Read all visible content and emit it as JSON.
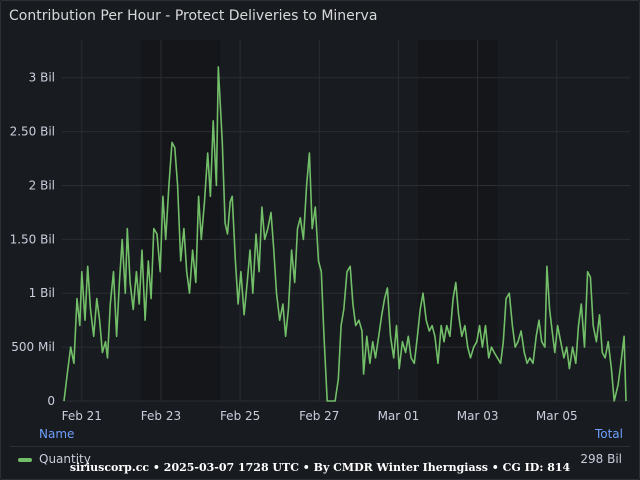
{
  "panel": {
    "title": "Contribution Per Hour - Protect Deliveries to Minerva"
  },
  "legend": {
    "name_header": "Name",
    "total_header": "Total",
    "series_name": "Quantity",
    "series_total": "298 Bil"
  },
  "footer": {
    "text": "siriuscorp.cc • 2025-03-07 1728 UTC • By CMDR Winter Iherngiass • CG ID: 814"
  },
  "colors": {
    "series": "#73bf69",
    "background": "#181b1f",
    "axis_text": "#ccccdc",
    "link": "#6e9fff"
  },
  "chart_data": {
    "type": "line",
    "title": "Contribution Per Hour - Protect Deliveries to Minerva",
    "xlabel": "",
    "ylabel": "",
    "x_tick_labels": [
      "Feb 21",
      "Feb 23",
      "Feb 25",
      "Feb 27",
      "Mar 01",
      "Mar 03",
      "Mar 05"
    ],
    "y_tick_labels": [
      "0",
      "500 Mil",
      "1 Bil",
      "1.50 Bil",
      "2 Bil",
      "2.50 Bil",
      "3 Bil"
    ],
    "y_ticks": [
      0,
      0.5,
      1.0,
      1.5,
      2.0,
      2.5,
      3.0
    ],
    "y_unit": "Bil",
    "ylim": [
      0,
      3.35
    ],
    "xlim_days_from_feb21": [
      -0.5,
      13.85
    ],
    "grid": true,
    "legend_position": "bottom",
    "series": [
      {
        "name": "Quantity",
        "color": "#73bf69",
        "points": [
          [
            -0.45,
            0.0
          ],
          [
            -0.35,
            0.3
          ],
          [
            -0.28,
            0.5
          ],
          [
            -0.2,
            0.35
          ],
          [
            -0.12,
            0.95
          ],
          [
            -0.05,
            0.7
          ],
          [
            0.0,
            1.2
          ],
          [
            0.08,
            0.75
          ],
          [
            0.15,
            1.25
          ],
          [
            0.22,
            0.85
          ],
          [
            0.3,
            0.6
          ],
          [
            0.38,
            0.95
          ],
          [
            0.45,
            0.75
          ],
          [
            0.52,
            0.45
          ],
          [
            0.6,
            0.55
          ],
          [
            0.65,
            0.4
          ],
          [
            0.72,
            0.9
          ],
          [
            0.8,
            1.2
          ],
          [
            0.88,
            0.6
          ],
          [
            0.95,
            1.1
          ],
          [
            1.02,
            1.5
          ],
          [
            1.1,
            1.0
          ],
          [
            1.15,
            1.6
          ],
          [
            1.22,
            1.1
          ],
          [
            1.3,
            0.85
          ],
          [
            1.38,
            1.2
          ],
          [
            1.45,
            0.9
          ],
          [
            1.52,
            1.4
          ],
          [
            1.6,
            0.75
          ],
          [
            1.68,
            1.3
          ],
          [
            1.75,
            0.95
          ],
          [
            1.82,
            1.6
          ],
          [
            1.9,
            1.55
          ],
          [
            1.98,
            1.2
          ],
          [
            2.05,
            1.9
          ],
          [
            2.12,
            1.5
          ],
          [
            2.2,
            2.0
          ],
          [
            2.28,
            2.4
          ],
          [
            2.35,
            2.35
          ],
          [
            2.42,
            2.0
          ],
          [
            2.5,
            1.3
          ],
          [
            2.58,
            1.6
          ],
          [
            2.65,
            1.2
          ],
          [
            2.72,
            1.0
          ],
          [
            2.8,
            1.4
          ],
          [
            2.88,
            1.1
          ],
          [
            2.95,
            1.9
          ],
          [
            3.02,
            1.5
          ],
          [
            3.1,
            1.85
          ],
          [
            3.18,
            2.3
          ],
          [
            3.25,
            1.9
          ],
          [
            3.32,
            2.6
          ],
          [
            3.4,
            2.0
          ],
          [
            3.45,
            3.1
          ],
          [
            3.5,
            2.75
          ],
          [
            3.55,
            2.4
          ],
          [
            3.62,
            1.65
          ],
          [
            3.68,
            1.55
          ],
          [
            3.75,
            1.85
          ],
          [
            3.8,
            1.9
          ],
          [
            3.88,
            1.3
          ],
          [
            3.95,
            0.9
          ],
          [
            4.02,
            1.2
          ],
          [
            4.1,
            0.8
          ],
          [
            4.18,
            1.1
          ],
          [
            4.25,
            1.4
          ],
          [
            4.32,
            1.0
          ],
          [
            4.4,
            1.55
          ],
          [
            4.48,
            1.2
          ],
          [
            4.55,
            1.8
          ],
          [
            4.62,
            1.5
          ],
          [
            4.7,
            1.6
          ],
          [
            4.78,
            1.75
          ],
          [
            4.85,
            1.4
          ],
          [
            4.92,
            1.0
          ],
          [
            5.0,
            0.75
          ],
          [
            5.08,
            0.9
          ],
          [
            5.15,
            0.6
          ],
          [
            5.22,
            0.85
          ],
          [
            5.3,
            1.4
          ],
          [
            5.38,
            1.1
          ],
          [
            5.45,
            1.6
          ],
          [
            5.52,
            1.7
          ],
          [
            5.6,
            1.5
          ],
          [
            5.68,
            2.0
          ],
          [
            5.75,
            2.3
          ],
          [
            5.82,
            1.6
          ],
          [
            5.9,
            1.8
          ],
          [
            5.98,
            1.3
          ],
          [
            6.05,
            1.2
          ],
          [
            6.12,
            0.6
          ],
          [
            6.2,
            0.0
          ],
          [
            6.4,
            0.0
          ],
          [
            6.48,
            0.2
          ],
          [
            6.55,
            0.7
          ],
          [
            6.62,
            0.85
          ],
          [
            6.7,
            1.2
          ],
          [
            6.78,
            1.25
          ],
          [
            6.85,
            0.9
          ],
          [
            6.92,
            0.7
          ],
          [
            7.0,
            0.75
          ],
          [
            7.08,
            0.65
          ],
          [
            7.12,
            0.25
          ],
          [
            7.2,
            0.6
          ],
          [
            7.28,
            0.35
          ],
          [
            7.35,
            0.55
          ],
          [
            7.42,
            0.4
          ],
          [
            7.5,
            0.6
          ],
          [
            7.58,
            0.8
          ],
          [
            7.65,
            0.95
          ],
          [
            7.72,
            1.05
          ],
          [
            7.8,
            0.6
          ],
          [
            7.88,
            0.4
          ],
          [
            7.95,
            0.7
          ],
          [
            8.02,
            0.3
          ],
          [
            8.1,
            0.55
          ],
          [
            8.18,
            0.45
          ],
          [
            8.25,
            0.6
          ],
          [
            8.32,
            0.4
          ],
          [
            8.4,
            0.35
          ],
          [
            8.48,
            0.6
          ],
          [
            8.55,
            0.85
          ],
          [
            8.62,
            1.0
          ],
          [
            8.7,
            0.75
          ],
          [
            8.78,
            0.65
          ],
          [
            8.85,
            0.7
          ],
          [
            8.92,
            0.6
          ],
          [
            9.0,
            0.35
          ],
          [
            9.08,
            0.7
          ],
          [
            9.15,
            0.55
          ],
          [
            9.22,
            0.7
          ],
          [
            9.3,
            0.6
          ],
          [
            9.38,
            0.95
          ],
          [
            9.45,
            1.1
          ],
          [
            9.52,
            0.8
          ],
          [
            9.6,
            0.6
          ],
          [
            9.68,
            0.7
          ],
          [
            9.75,
            0.5
          ],
          [
            9.82,
            0.4
          ],
          [
            9.9,
            0.5
          ],
          [
            9.98,
            0.55
          ],
          [
            10.05,
            0.7
          ],
          [
            10.12,
            0.5
          ],
          [
            10.2,
            0.7
          ],
          [
            10.28,
            0.4
          ],
          [
            10.35,
            0.5
          ],
          [
            10.42,
            0.45
          ],
          [
            10.5,
            0.4
          ],
          [
            10.58,
            0.35
          ],
          [
            10.65,
            0.55
          ],
          [
            10.72,
            0.95
          ],
          [
            10.8,
            1.0
          ],
          [
            10.88,
            0.7
          ],
          [
            10.95,
            0.5
          ],
          [
            11.02,
            0.55
          ],
          [
            11.1,
            0.65
          ],
          [
            11.18,
            0.45
          ],
          [
            11.25,
            0.35
          ],
          [
            11.32,
            0.4
          ],
          [
            11.4,
            0.35
          ],
          [
            11.48,
            0.6
          ],
          [
            11.55,
            0.75
          ],
          [
            11.62,
            0.55
          ],
          [
            11.7,
            0.5
          ],
          [
            11.75,
            1.25
          ],
          [
            11.82,
            0.85
          ],
          [
            11.9,
            0.6
          ],
          [
            11.95,
            0.45
          ],
          [
            12.02,
            0.7
          ],
          [
            12.1,
            0.55
          ],
          [
            12.18,
            0.4
          ],
          [
            12.25,
            0.5
          ],
          [
            12.32,
            0.3
          ],
          [
            12.4,
            0.5
          ],
          [
            12.48,
            0.35
          ],
          [
            12.55,
            0.7
          ],
          [
            12.62,
            0.9
          ],
          [
            12.7,
            0.5
          ],
          [
            12.78,
            1.2
          ],
          [
            12.85,
            1.15
          ],
          [
            12.92,
            0.7
          ],
          [
            13.0,
            0.55
          ],
          [
            13.08,
            0.8
          ],
          [
            13.15,
            0.45
          ],
          [
            13.22,
            0.4
          ],
          [
            13.3,
            0.55
          ],
          [
            13.38,
            0.3
          ],
          [
            13.45,
            0.0
          ],
          [
            13.55,
            0.15
          ],
          [
            13.62,
            0.35
          ],
          [
            13.7,
            0.6
          ],
          [
            13.75,
            0.0
          ]
        ]
      }
    ]
  }
}
